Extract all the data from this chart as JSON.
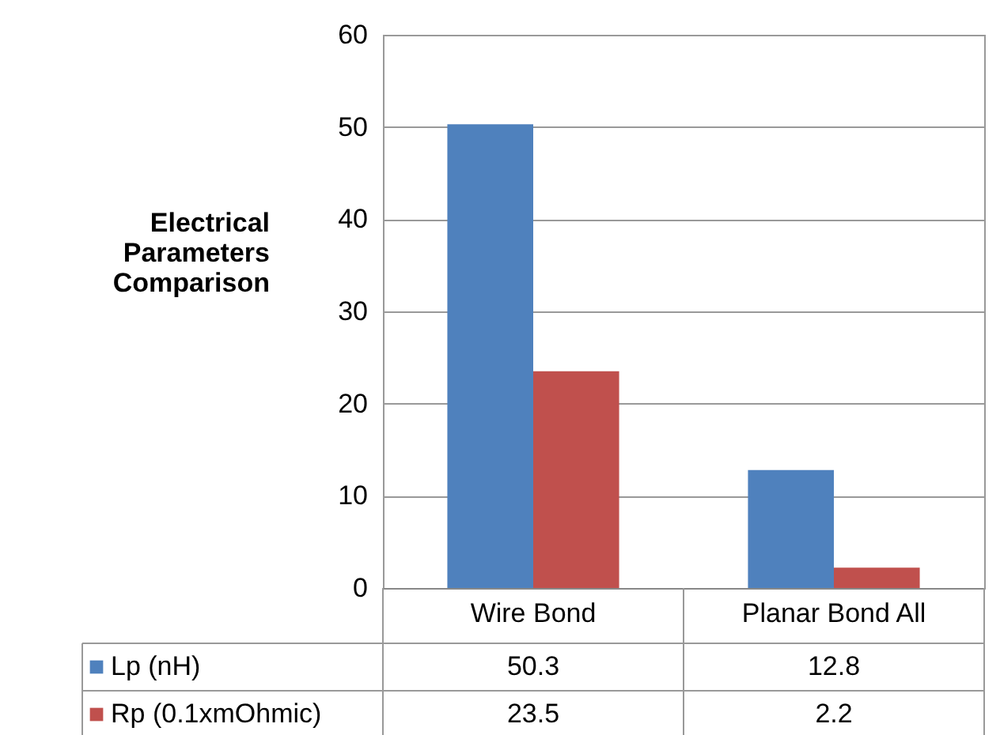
{
  "chart_data": {
    "type": "bar",
    "ylabel": "Electrical Parameters Comparison",
    "categories": [
      "Wire Bond",
      "Planar Bond All"
    ],
    "series": [
      {
        "name": "Lp (nH)",
        "color": "#4f81bd",
        "values": [
          50.3,
          12.8
        ]
      },
      {
        "name": "Rp (0.1xmOhmic)",
        "color": "#c0504d",
        "values": [
          23.5,
          2.2
        ]
      }
    ],
    "ylim": [
      0,
      60
    ],
    "yticks": [
      0,
      10,
      20,
      30,
      40,
      50,
      60
    ],
    "grid": "y",
    "data_labels": true,
    "legend": "bottom"
  }
}
